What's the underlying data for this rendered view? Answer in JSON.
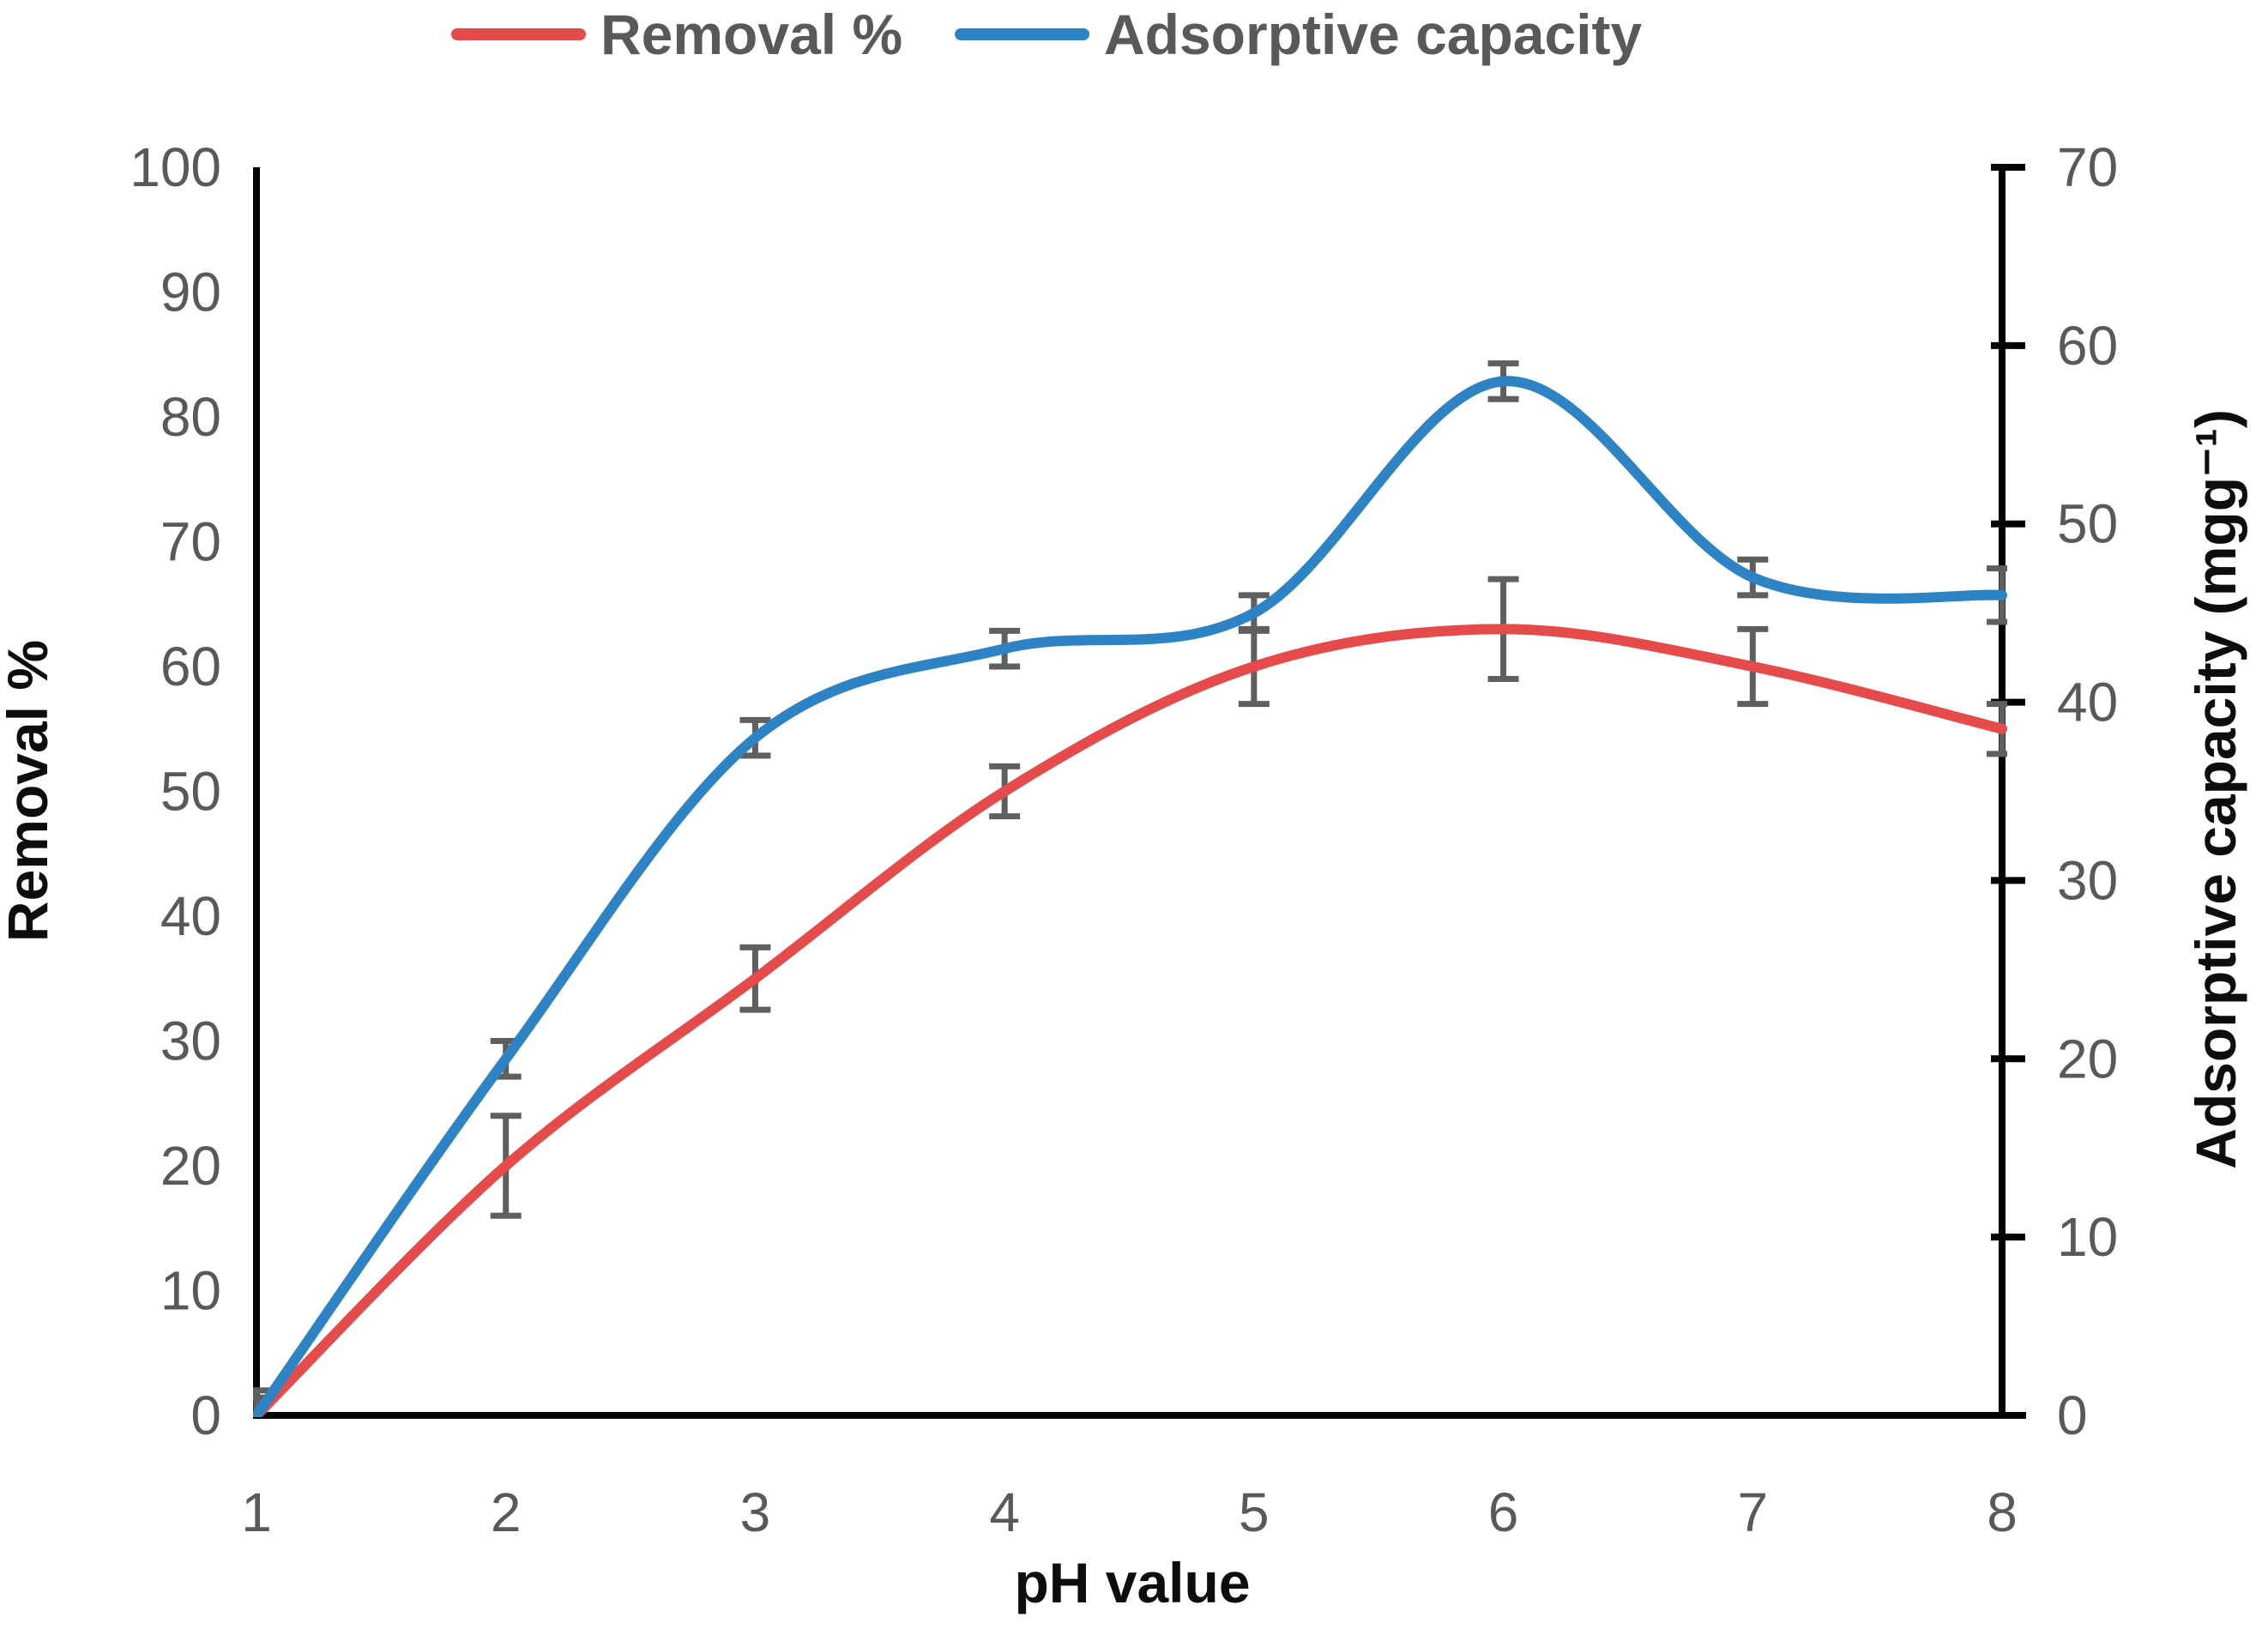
{
  "chart_data": {
    "type": "line",
    "title": "",
    "x": [
      1,
      2,
      3,
      4,
      5,
      6,
      7,
      8
    ],
    "xlabel": "pH value",
    "x_tick_labels": [
      "1",
      "2",
      "3",
      "4",
      "5",
      "6",
      "7",
      "8"
    ],
    "left_axis": {
      "label": "Removal %",
      "min": 0,
      "max": 100,
      "step": 10,
      "ticks": [
        0,
        10,
        20,
        30,
        40,
        50,
        60,
        70,
        80,
        90,
        100
      ]
    },
    "right_axis": {
      "label": "Adsorptive capacity (mgg⁻¹)",
      "min": 0,
      "max": 70,
      "step": 10,
      "ticks": [
        0,
        10,
        20,
        30,
        40,
        50,
        60,
        70
      ]
    },
    "legend": {
      "position": "top",
      "items": [
        {
          "label": "Removal %"
        },
        {
          "label": "Adsorptive capacity"
        }
      ]
    },
    "grid": false,
    "series": [
      {
        "name": "Removal %",
        "axis": "left",
        "color": "#E54B4B",
        "values": [
          0,
          20,
          35,
          50,
          60,
          63,
          60,
          55
        ],
        "error_bars": [
          2,
          4,
          2.5,
          2,
          3,
          4,
          3,
          2
        ]
      },
      {
        "name": "Adsorptive capacity",
        "axis": "right",
        "color": "#2E83C5",
        "values": [
          0,
          20,
          38,
          43,
          45,
          58,
          47,
          46
        ],
        "error_bars": [
          1,
          1,
          1,
          1,
          1,
          1,
          1,
          1.5
        ]
      }
    ],
    "error_bar_color": "#5F5F5F",
    "tick_text_color": "#595959",
    "legend_text_color": "#595959",
    "axis_color": "#000000"
  }
}
